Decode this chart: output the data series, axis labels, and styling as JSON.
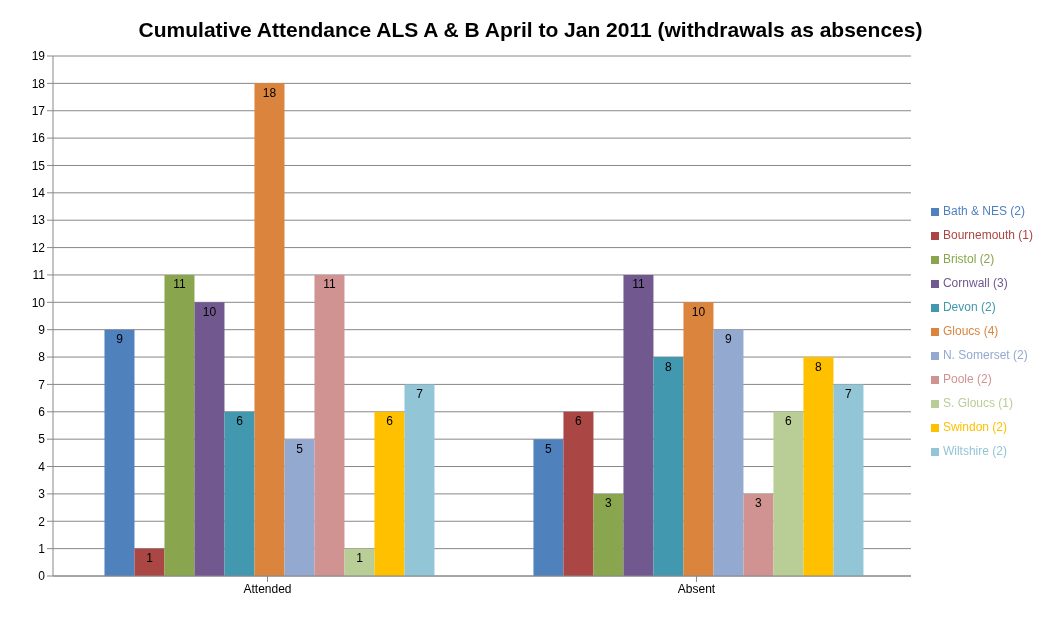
{
  "chart_data": {
    "type": "bar",
    "title": "Cumulative Attendance ALS A & B April to Jan 2011 (withdrawals as absences)",
    "categories": [
      "Attended",
      "Absent"
    ],
    "series": [
      {
        "name": "Bath & NES (2)",
        "color": "#4f81bd",
        "values": [
          9,
          5
        ]
      },
      {
        "name": "Bournemouth (1)",
        "color": "#aa4643",
        "values": [
          1,
          6
        ]
      },
      {
        "name": "Bristol (2)",
        "color": "#89a54e",
        "values": [
          11,
          3
        ]
      },
      {
        "name": "Cornwall (3)",
        "color": "#71588f",
        "values": [
          10,
          11
        ]
      },
      {
        "name": "Devon (2)",
        "color": "#4198af",
        "values": [
          6,
          8
        ]
      },
      {
        "name": "Gloucs (4)",
        "color": "#db843d",
        "values": [
          18,
          10
        ]
      },
      {
        "name": "N. Somerset (2)",
        "color": "#93a9cf",
        "values": [
          5,
          9
        ]
      },
      {
        "name": "Poole (2)",
        "color": "#d19392",
        "values": [
          11,
          3
        ]
      },
      {
        "name": "S. Gloucs (1)",
        "color": "#b9cd96",
        "values": [
          1,
          6
        ]
      },
      {
        "name": "Swindon (2)",
        "color": "#ffc000",
        "values": [
          6,
          8
        ]
      },
      {
        "name": "Wiltshire (2)",
        "color": "#92c5d5",
        "values": [
          7,
          7
        ]
      }
    ],
    "ylim": [
      0,
      19
    ],
    "yticks": [
      0,
      1,
      2,
      3,
      4,
      5,
      6,
      7,
      8,
      9,
      10,
      11,
      12,
      13,
      14,
      15,
      16,
      17,
      18,
      19
    ],
    "grid": "y",
    "legend": "right",
    "data_labels": true
  }
}
